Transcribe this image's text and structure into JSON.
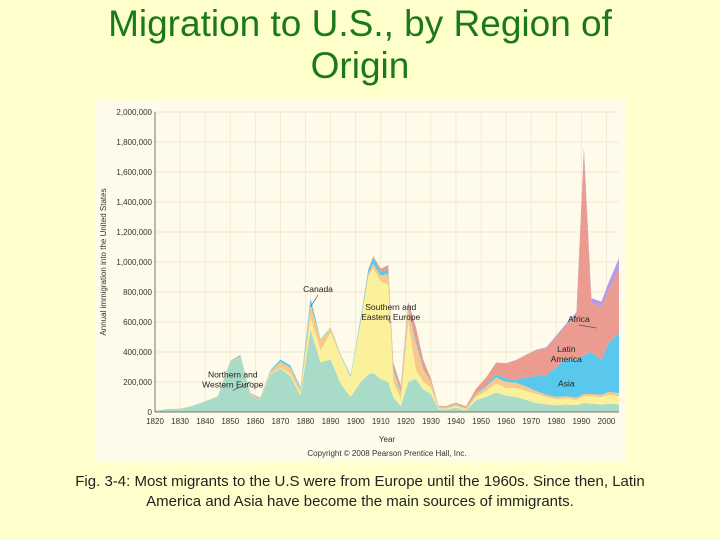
{
  "slide": {
    "title_line1": "Migration to U.S., by Region of",
    "title_line2": "Origin",
    "caption_line1": "Fig. 3-4: Most migrants to the U.S were from Europe until the 1960s.  Since then, Latin",
    "caption_line2": "America and Asia have become the main sources of immigrants."
  },
  "chart_data": {
    "type": "area",
    "title": "",
    "xlabel": "Year",
    "ylabel": "Annual immigration into the United States",
    "xlim": [
      1820,
      2005
    ],
    "ylim": [
      0,
      2000000
    ],
    "yticks": [
      0,
      200000,
      400000,
      600000,
      800000,
      1000000,
      1200000,
      1400000,
      1600000,
      1800000,
      2000000
    ],
    "ytick_labels": [
      "0",
      "200,000",
      "400,000",
      "600,000",
      "800,000",
      "1,000,000",
      "1,200,000",
      "1,400,000",
      "1,600,000",
      "1,800,000",
      "2,000,000"
    ],
    "xticks": [
      1820,
      1830,
      1840,
      1850,
      1860,
      1870,
      1880,
      1890,
      1900,
      1910,
      1920,
      1930,
      1940,
      1950,
      1960,
      1970,
      1980,
      1990,
      2000
    ],
    "copyright": "Copyright © 2008 Pearson Prentice Hall, Inc.",
    "x": [
      1820,
      1825,
      1830,
      1835,
      1840,
      1845,
      1850,
      1854,
      1858,
      1862,
      1866,
      1870,
      1874,
      1878,
      1882,
      1886,
      1890,
      1894,
      1898,
      1902,
      1905,
      1907,
      1910,
      1913,
      1915,
      1918,
      1921,
      1924,
      1927,
      1930,
      1933,
      1936,
      1940,
      1944,
      1948,
      1952,
      1956,
      1960,
      1964,
      1968,
      1972,
      1976,
      1980,
      1984,
      1988,
      1991,
      1994,
      1998,
      2001,
      2005
    ],
    "series": [
      {
        "name": "Northern and Western Europe",
        "color": "#a8dcc8",
        "values": [
          8000,
          20000,
          22000,
          40000,
          70000,
          100000,
          330000,
          360000,
          110000,
          80000,
          250000,
          290000,
          240000,
          110000,
          550000,
          330000,
          350000,
          190000,
          100000,
          200000,
          250000,
          260000,
          220000,
          200000,
          100000,
          40000,
          200000,
          220000,
          150000,
          120000,
          20000,
          15000,
          30000,
          10000,
          80000,
          100000,
          130000,
          110000,
          100000,
          80000,
          60000,
          50000,
          45000,
          50000,
          45000,
          60000,
          55000,
          50000,
          55000,
          50000
        ]
      },
      {
        "name": "Southern and Eastern Europe",
        "color": "#fbf19a",
        "values": [
          0,
          0,
          0,
          0,
          0,
          0,
          0,
          0,
          0,
          0,
          3000,
          5000,
          15000,
          15000,
          80000,
          80000,
          180000,
          180000,
          130000,
          400000,
          650000,
          700000,
          650000,
          650000,
          100000,
          50000,
          400000,
          60000,
          50000,
          40000,
          5000,
          5000,
          10000,
          5000,
          20000,
          40000,
          60000,
          50000,
          60000,
          60000,
          60000,
          50000,
          40000,
          40000,
          35000,
          45000,
          50000,
          50000,
          60000,
          55000
        ]
      },
      {
        "name": "Canada",
        "color": "#f7c98a",
        "values": [
          0,
          0,
          1000,
          2000,
          3000,
          5000,
          8000,
          10000,
          10000,
          10000,
          20000,
          40000,
          40000,
          30000,
          90000,
          70000,
          30000,
          10000,
          5000,
          10000,
          20000,
          30000,
          40000,
          70000,
          80000,
          40000,
          80000,
          180000,
          80000,
          40000,
          10000,
          10000,
          12000,
          10000,
          20000,
          30000,
          40000,
          40000,
          35000,
          30000,
          20000,
          15000,
          15000,
          15000,
          15000,
          15000,
          15000,
          15000,
          20000,
          20000
        ]
      },
      {
        "name": "Asia",
        "color": "#5ac8ec",
        "values": [
          0,
          0,
          0,
          0,
          0,
          0,
          2000,
          10000,
          5000,
          5000,
          5000,
          15000,
          15000,
          10000,
          40000,
          5000,
          5000,
          5000,
          10000,
          20000,
          25000,
          40000,
          25000,
          30000,
          20000,
          15000,
          15000,
          20000,
          5000,
          5000,
          3000,
          3000,
          3000,
          2000,
          5000,
          10000,
          20000,
          25000,
          20000,
          60000,
          100000,
          130000,
          200000,
          250000,
          250000,
          260000,
          280000,
          230000,
          330000,
          400000
        ]
      },
      {
        "name": "Latin America",
        "color": "#ec9b90",
        "values": [
          0,
          0,
          0,
          0,
          0,
          0,
          0,
          0,
          0,
          0,
          0,
          0,
          0,
          0,
          0,
          0,
          0,
          0,
          0,
          0,
          5000,
          10000,
          20000,
          30000,
          30000,
          30000,
          40000,
          90000,
          60000,
          20000,
          5000,
          5000,
          8000,
          10000,
          30000,
          50000,
          80000,
          100000,
          130000,
          150000,
          170000,
          180000,
          200000,
          220000,
          300000,
          1350000,
          330000,
          350000,
          350000,
          420000
        ]
      },
      {
        "name": "Africa",
        "color": "#b99ae0",
        "values": [
          0,
          0,
          0,
          0,
          0,
          0,
          0,
          0,
          0,
          0,
          0,
          0,
          0,
          0,
          0,
          0,
          0,
          0,
          0,
          0,
          0,
          0,
          0,
          0,
          0,
          0,
          0,
          0,
          0,
          0,
          0,
          0,
          0,
          0,
          0,
          0,
          0,
          1000,
          2000,
          3000,
          5000,
          7000,
          10000,
          15000,
          20000,
          35000,
          30000,
          40000,
          55000,
          80000
        ]
      }
    ],
    "annotations": [
      {
        "text": [
          "Canada"
        ],
        "x": 1885,
        "y": 800000
      },
      {
        "text": [
          "Southern and",
          "Eastern Europe"
        ],
        "x": 1914,
        "y": 680000
      },
      {
        "text": [
          "Northern and",
          "Western Europe"
        ],
        "x": 1851,
        "y": 230000
      },
      {
        "text": [
          "Africa"
        ],
        "x": 1989,
        "y": 600000
      },
      {
        "text": [
          "Latin",
          "America"
        ],
        "x": 1984,
        "y": 400000
      },
      {
        "text": [
          "Asia"
        ],
        "x": 1984,
        "y": 170000
      }
    ]
  }
}
